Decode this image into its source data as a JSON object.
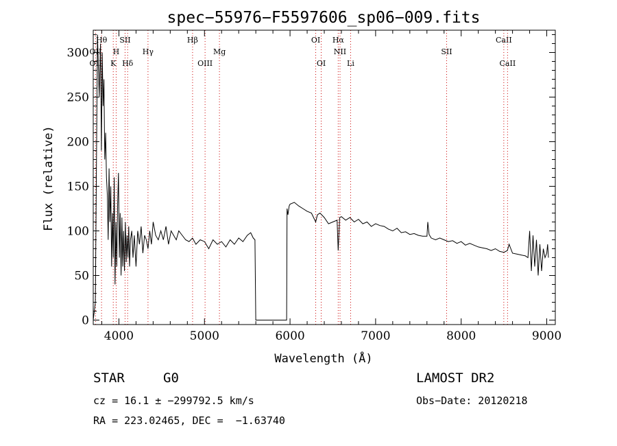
{
  "chart_data": {
    "type": "line",
    "title": "spec−55976−F5597606_sp06−009.fits",
    "xlabel": "Wavelength (Å)",
    "ylabel": "Flux (relative)",
    "xlim": [
      3700,
      9100
    ],
    "ylim": [
      -5,
      325
    ],
    "xticks": [
      4000,
      5000,
      6000,
      7000,
      8000,
      9000
    ],
    "yticks": [
      0,
      50,
      100,
      150,
      200,
      250,
      300
    ],
    "grid": false,
    "line_color": "#000000",
    "marker_color": "#cc0000",
    "spectral_lines": [
      {
        "label": "Hθ",
        "wavelength": 3797,
        "row": 0
      },
      {
        "label": "OII",
        "wavelength": 3727,
        "row": 1
      },
      {
        "label": "OII",
        "wavelength": 3727,
        "row": 2
      },
      {
        "label": "SII",
        "wavelength": 4072,
        "row": 0
      },
      {
        "label": "H",
        "wavelength": 3968,
        "row": 1
      },
      {
        "label": "K",
        "wavelength": 3934,
        "row": 2
      },
      {
        "label": "Hδ",
        "wavelength": 4102,
        "row": 2
      },
      {
        "label": "Hγ",
        "wavelength": 4340,
        "row": 1
      },
      {
        "label": "Hβ",
        "wavelength": 4861,
        "row": 0
      },
      {
        "label": "Mg",
        "wavelength": 5175,
        "row": 1
      },
      {
        "label": "OIII",
        "wavelength": 5007,
        "row": 2
      },
      {
        "label": "OI",
        "wavelength": 6300,
        "row": 0
      },
      {
        "label": "Hα",
        "wavelength": 6563,
        "row": 0
      },
      {
        "label": "NII",
        "wavelength": 6584,
        "row": 1
      },
      {
        "label": "OI",
        "wavelength": 6364,
        "row": 2
      },
      {
        "label": "Li",
        "wavelength": 6708,
        "row": 2
      },
      {
        "label": "SII",
        "wavelength": 7830,
        "row": 1
      },
      {
        "label": "CaII",
        "wavelength": 8498,
        "row": 0
      },
      {
        "label": "CaII",
        "wavelength": 8542,
        "row": 2
      }
    ],
    "series": [
      {
        "x": [
          3700,
          3725,
          3750,
          3770,
          3785,
          3795,
          3805,
          3815,
          3825,
          3835,
          3845,
          3855,
          3865,
          3875,
          3885,
          3895,
          3905,
          3915,
          3925,
          3935,
          3945,
          3955,
          3965,
          3975,
          3985,
          3995,
          4005,
          4015,
          4025,
          4035,
          4045,
          4055,
          4065,
          4075,
          4085,
          4095,
          4105,
          4115,
          4125,
          4135,
          4150,
          4165,
          4180,
          4200,
          4220,
          4240,
          4260,
          4280,
          4300,
          4320,
          4340,
          4360,
          4380,
          4400,
          4430,
          4460,
          4490,
          4520,
          4550,
          4580,
          4610,
          4640,
          4670,
          4700,
          4740,
          4780,
          4820,
          4860,
          4900,
          4950,
          5000,
          5050,
          5100,
          5150,
          5200,
          5250,
          5300,
          5350,
          5400,
          5450,
          5500,
          5540,
          5570,
          5590,
          5600,
          5605,
          5960,
          5965,
          5975,
          5990,
          6000,
          6050,
          6100,
          6150,
          6200,
          6250,
          6300,
          6320,
          6350,
          6400,
          6450,
          6500,
          6550,
          6563,
          6580,
          6600,
          6650,
          6700,
          6750,
          6800,
          6850,
          6900,
          6950,
          7000,
          7050,
          7100,
          7150,
          7200,
          7250,
          7300,
          7350,
          7400,
          7450,
          7500,
          7550,
          7600,
          7610,
          7625,
          7650,
          7700,
          7750,
          7800,
          7850,
          7900,
          7950,
          8000,
          8050,
          8100,
          8150,
          8200,
          8250,
          8300,
          8350,
          8400,
          8450,
          8500,
          8540,
          8560,
          8600,
          8650,
          8700,
          8750,
          8780,
          8800,
          8820,
          8840,
          8860,
          8880,
          8900,
          8920,
          8940,
          8960,
          8980,
          9000,
          9010,
          9020
        ],
        "values": [
          0,
          20,
          320,
          250,
          310,
          190,
          300,
          240,
          270,
          180,
          210,
          160,
          140,
          90,
          170,
          110,
          150,
          60,
          120,
          70,
          160,
          40,
          110,
          60,
          130,
          165,
          70,
          120,
          50,
          115,
          60,
          100,
          55,
          110,
          65,
          95,
          70,
          105,
          60,
          90,
          100,
          70,
          95,
          60,
          100,
          85,
          105,
          75,
          95,
          90,
          80,
          100,
          85,
          110,
          95,
          90,
          100,
          90,
          105,
          85,
          100,
          95,
          90,
          100,
          95,
          90,
          88,
          92,
          85,
          90,
          88,
          80,
          90,
          85,
          88,
          82,
          90,
          85,
          92,
          88,
          95,
          98,
          92,
          90,
          0,
          0,
          0,
          125,
          118,
          128,
          130,
          132,
          128,
          125,
          122,
          120,
          110,
          118,
          120,
          115,
          108,
          110,
          112,
          78,
          115,
          116,
          112,
          115,
          110,
          113,
          108,
          110,
          105,
          108,
          106,
          105,
          102,
          100,
          103,
          98,
          99,
          96,
          97,
          95,
          94,
          94,
          110,
          96,
          92,
          90,
          92,
          90,
          88,
          89,
          86,
          88,
          84,
          86,
          84,
          82,
          81,
          80,
          78,
          80,
          77,
          76,
          78,
          85,
          75,
          74,
          73,
          72,
          70,
          100,
          55,
          95,
          60,
          90,
          50,
          85,
          55,
          80,
          70,
          75,
          85,
          70
        ]
      }
    ]
  },
  "info": {
    "class": "STAR",
    "subclass": "G0",
    "survey": "LAMOST DR2",
    "cz": "cz = 16.1 ± −299792.5 km/s",
    "obs_date": "Obs−Date: 20120218",
    "radec": "RA = 223.02465, DEC =  −1.63740"
  }
}
